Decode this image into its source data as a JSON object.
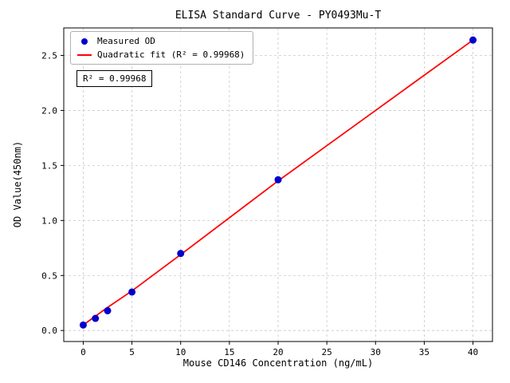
{
  "title": "ELISA Standard Curve - PY0493Mu-T",
  "annotation": "R² = 0.99968",
  "legend": {
    "measured_label": "Measured OD",
    "fit_label": "Quadratic fit (R² = 0.99968)"
  },
  "colors": {
    "points": "#0000cd",
    "fit_line": "#ff0000",
    "grid": "#c8c8c8",
    "axis": "#000000"
  },
  "chart_data": {
    "type": "scatter",
    "title": "ELISA Standard Curve - PY0493Mu-T",
    "xlabel": "Mouse CD146 Concentration (ng/mL)",
    "ylabel": "OD Value(450nm)",
    "xlim": [
      -2,
      42
    ],
    "ylim": [
      -0.1,
      2.75
    ],
    "x_ticks": [
      0,
      5,
      10,
      15,
      20,
      25,
      30,
      35,
      40
    ],
    "y_ticks": [
      0.0,
      0.5,
      1.0,
      1.5,
      2.0,
      2.5
    ],
    "grid": true,
    "grid_style": "dashed",
    "legend_position": "upper left",
    "r_squared": 0.99968,
    "series": [
      {
        "name": "Measured OD",
        "type": "scatter",
        "color": "#0000cd",
        "x": [
          0,
          1.25,
          2.5,
          5,
          10,
          20,
          40
        ],
        "y": [
          0.05,
          0.11,
          0.18,
          0.35,
          0.7,
          1.37,
          2.64
        ]
      },
      {
        "name": "Quadratic fit (R² = 0.99968)",
        "type": "line",
        "color": "#ff0000",
        "x": [
          0,
          1.25,
          2.5,
          5,
          10,
          20,
          30,
          40
        ],
        "y": [
          0.05,
          0.13,
          0.21,
          0.36,
          0.69,
          1.36,
          2.0,
          2.64
        ]
      }
    ]
  }
}
